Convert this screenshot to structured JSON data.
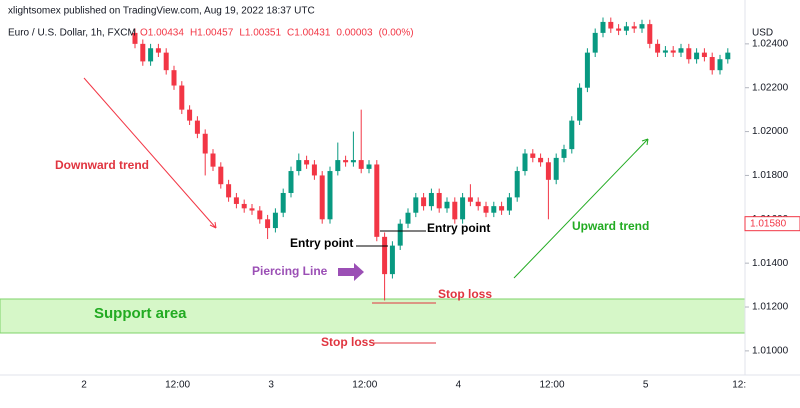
{
  "chart_data": {
    "type": "candlestick",
    "title": "xlightsomex published on TradingView.com, Aug 19, 2022 18:37 UTC",
    "symbol": "Euro / U.S. Dollar, 1h, FXCM",
    "ohlc_legend": [
      "O1.00434",
      "H1.00457",
      "L1.00351",
      "C1.00431",
      "0.00003",
      "(0.00%)"
    ],
    "currency": "USD",
    "up_color": "#089981",
    "down_color": "#f23645",
    "open": [
      1.0245,
      1.024,
      1.0232,
      1.0238,
      1.0236,
      1.0228,
      1.0221,
      1.021,
      1.0205,
      1.0199,
      1.019,
      1.0184,
      1.0176,
      1.017,
      1.0167,
      1.0165,
      1.0164,
      1.016,
      1.0156,
      1.0163,
      1.0172,
      1.0182,
      1.0187,
      1.0185,
      1.018,
      1.016,
      1.0182,
      1.0187,
      1.0186,
      1.0187,
      1.0183,
      1.0185,
      1.0152,
      1.0135,
      1.0148,
      1.0158,
      1.0163,
      1.017,
      1.0166,
      1.0172,
      1.0165,
      1.0168,
      1.016,
      1.017,
      1.0168,
      1.0166,
      1.0163,
      1.0166,
      1.0164,
      1.017,
      1.0182,
      1.019,
      1.0188,
      1.0186,
      1.0178,
      1.0188,
      1.0192,
      1.0205,
      1.022,
      1.0236,
      1.0245,
      1.025,
      1.0247,
      1.0246,
      1.0248,
      1.0247,
      1.0249,
      1.024,
      1.0236,
      1.0237,
      1.0236,
      1.0238,
      1.0233,
      1.0236,
      1.0234,
      1.0228,
      1.0233
    ],
    "high": [
      1.0247,
      1.0242,
      1.024,
      1.024,
      1.0238,
      1.023,
      1.0223,
      1.0212,
      1.0207,
      1.0201,
      1.0192,
      1.0186,
      1.0178,
      1.0172,
      1.0169,
      1.0167,
      1.0166,
      1.0162,
      1.0165,
      1.0174,
      1.0184,
      1.019,
      1.0189,
      1.0187,
      1.0182,
      1.0184,
      1.0195,
      1.0189,
      1.02,
      1.021,
      1.0187,
      1.0187,
      1.0154,
      1.015,
      1.016,
      1.0165,
      1.0172,
      1.0172,
      1.0174,
      1.0174,
      1.017,
      1.017,
      1.0172,
      1.0176,
      1.017,
      1.0168,
      1.0168,
      1.0168,
      1.0172,
      1.0184,
      1.0192,
      1.0192,
      1.019,
      1.0188,
      1.019,
      1.0194,
      1.0207,
      1.0222,
      1.0238,
      1.0247,
      1.0252,
      1.0252,
      1.0249,
      1.025,
      1.025,
      1.0251,
      1.0251,
      1.0242,
      1.0239,
      1.0239,
      1.024,
      1.024,
      1.0238,
      1.0238,
      1.0236,
      1.0235,
      1.0238
    ],
    "low": [
      1.0238,
      1.023,
      1.023,
      1.0234,
      1.0226,
      1.0219,
      1.0208,
      1.0203,
      1.0197,
      1.018,
      1.0182,
      1.0174,
      1.0168,
      1.0165,
      1.0163,
      1.0162,
      1.0158,
      1.0151,
      1.0154,
      1.0161,
      1.017,
      1.018,
      1.0183,
      1.0178,
      1.0158,
      1.0158,
      1.018,
      1.0184,
      1.0184,
      1.0181,
      1.0181,
      1.015,
      1.0123,
      1.0133,
      1.0146,
      1.0156,
      1.0161,
      1.0164,
      1.0164,
      1.0163,
      1.0163,
      1.0158,
      1.0158,
      1.0166,
      1.0164,
      1.0161,
      1.0161,
      1.0162,
      1.0162,
      1.0168,
      1.018,
      1.0186,
      1.0184,
      1.016,
      1.0176,
      1.0186,
      1.019,
      1.0203,
      1.0218,
      1.0234,
      1.0243,
      1.0245,
      1.0244,
      1.0244,
      1.0245,
      1.0245,
      1.0238,
      1.0234,
      1.0234,
      1.0234,
      1.0234,
      1.0231,
      1.0231,
      1.0232,
      1.0226,
      1.0226,
      1.0231
    ],
    "close": [
      1.024,
      1.0232,
      1.0238,
      1.0236,
      1.0228,
      1.0221,
      1.021,
      1.0205,
      1.0199,
      1.019,
      1.0184,
      1.0176,
      1.017,
      1.0167,
      1.0165,
      1.0164,
      1.016,
      1.0156,
      1.0163,
      1.0172,
      1.0182,
      1.0187,
      1.0185,
      1.018,
      1.016,
      1.0182,
      1.0187,
      1.0186,
      1.0187,
      1.0183,
      1.0185,
      1.0152,
      1.0135,
      1.0148,
      1.0158,
      1.0163,
      1.017,
      1.0166,
      1.0172,
      1.0165,
      1.0168,
      1.016,
      1.017,
      1.0168,
      1.0166,
      1.0163,
      1.0166,
      1.0164,
      1.017,
      1.0182,
      1.019,
      1.0188,
      1.0186,
      1.0178,
      1.0188,
      1.0192,
      1.0205,
      1.022,
      1.0236,
      1.0245,
      1.025,
      1.0247,
      1.0246,
      1.0248,
      1.0247,
      1.0249,
      1.024,
      1.0236,
      1.0237,
      1.0236,
      1.0238,
      1.0233,
      1.0236,
      1.0234,
      1.0228,
      1.0233,
      1.0236
    ],
    "ylim": [
      1.0089,
      1.026
    ],
    "yticks": [
      {
        "value": 1.01,
        "label": "1.01000"
      },
      {
        "value": 1.012,
        "label": "1.01200"
      },
      {
        "value": 1.014,
        "label": "1.01400"
      },
      {
        "value": 1.016,
        "label": "1.01600"
      },
      {
        "value": 1.018,
        "label": "1.01800"
      },
      {
        "value": 1.02,
        "label": "1.02000"
      },
      {
        "value": 1.022,
        "label": "1.02200"
      },
      {
        "value": 1.024,
        "label": "1.02400"
      }
    ],
    "xticks": [
      "2",
      "12:00",
      "3",
      "12:00",
      "4",
      "12:00",
      "5",
      "12:"
    ],
    "price_tag": {
      "value": 1.0158,
      "label": "1.01580"
    },
    "annotations": {
      "downward": "Downward trend",
      "upward": "Upward trend",
      "entry1": "Entry point",
      "entry2": "Entry point",
      "piercing": "Piercing Line",
      "stop1": "Stop loss",
      "stop2": "Stop loss",
      "support": "Support area"
    }
  }
}
